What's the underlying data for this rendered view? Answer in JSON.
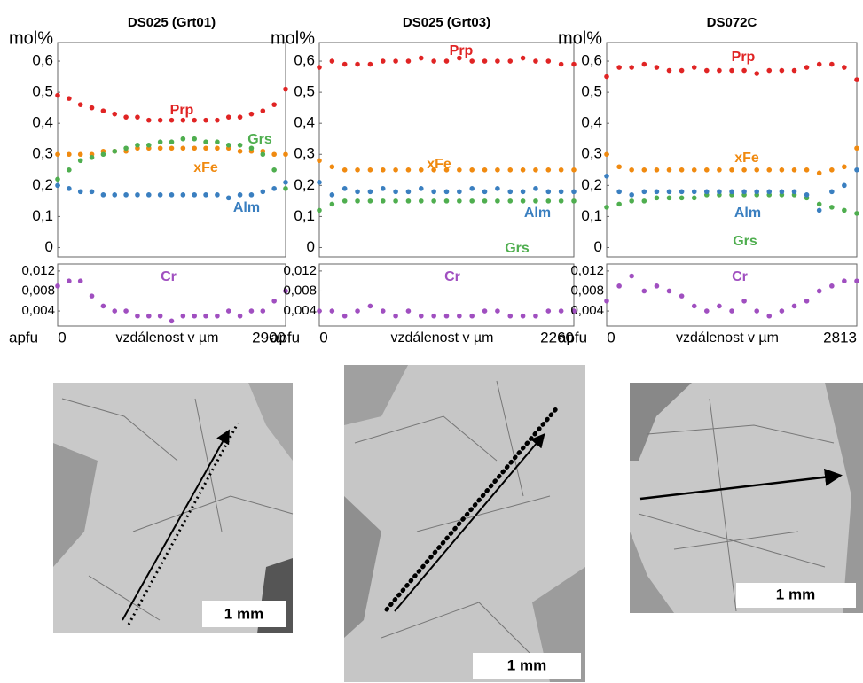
{
  "chart_data": [
    {
      "type": "scatter",
      "title": "DS025 (Grt01)",
      "ylabel": "mol%",
      "y2label": "apfu",
      "xlabel": "vzdálenost v µm",
      "x": [
        0,
        145,
        290,
        435,
        580,
        725,
        870,
        1015,
        1160,
        1305,
        1450,
        1595,
        1740,
        1885,
        2030,
        2175,
        2320,
        2465,
        2610,
        2755,
        2900
      ],
      "xlim": [
        0,
        2900
      ],
      "xticks": [
        0,
        2900
      ],
      "ylim": [
        -0.03,
        0.66
      ],
      "yticks": [
        0,
        {
          "value": 0.1,
          "label": "0,1"
        },
        {
          "value": 0.2,
          "label": "0,2"
        },
        {
          "value": 0.3,
          "label": "0,3"
        },
        {
          "value": 0.4,
          "label": "0,4"
        },
        {
          "value": 0.5,
          "label": "0,5"
        },
        {
          "value": 0.6,
          "label": "0,6"
        }
      ],
      "y2lim": [
        0.001,
        0.0134
      ],
      "y2ticks": [
        {
          "value": 0.004,
          "label": "0,004"
        },
        {
          "value": 0.008,
          "label": "0,008"
        },
        {
          "value": 0.012,
          "label": "0,012"
        }
      ],
      "series": [
        {
          "name": "Prp",
          "color": "#e02424",
          "values": [
            0.49,
            0.48,
            0.46,
            0.45,
            0.44,
            0.43,
            0.42,
            0.42,
            0.41,
            0.41,
            0.41,
            0.41,
            0.41,
            0.41,
            0.41,
            0.42,
            0.42,
            0.43,
            0.44,
            0.46,
            0.51
          ]
        },
        {
          "name": "xFe",
          "color": "#f08a10",
          "values": [
            0.3,
            0.3,
            0.3,
            0.3,
            0.31,
            0.31,
            0.31,
            0.32,
            0.32,
            0.32,
            0.32,
            0.32,
            0.32,
            0.32,
            0.32,
            0.32,
            0.31,
            0.31,
            0.31,
            0.3,
            0.3
          ]
        },
        {
          "name": "Grs",
          "color": "#4fae4f",
          "values": [
            0.22,
            0.25,
            0.28,
            0.29,
            0.3,
            0.31,
            0.32,
            0.33,
            0.33,
            0.34,
            0.34,
            0.35,
            0.35,
            0.34,
            0.34,
            0.33,
            0.33,
            0.32,
            0.3,
            0.25,
            0.19
          ]
        },
        {
          "name": "Alm",
          "color": "#3a7fc0",
          "values": [
            0.2,
            0.19,
            0.18,
            0.18,
            0.17,
            0.17,
            0.17,
            0.17,
            0.17,
            0.17,
            0.17,
            0.17,
            0.17,
            0.17,
            0.17,
            0.16,
            0.17,
            0.17,
            0.18,
            0.19,
            0.21
          ]
        },
        {
          "name": "Cr",
          "color": "#a04fc0",
          "axis": "y2",
          "values": [
            0.009,
            0.01,
            0.01,
            0.007,
            0.005,
            0.004,
            0.004,
            0.003,
            0.003,
            0.003,
            0.002,
            0.003,
            0.003,
            0.003,
            0.003,
            0.004,
            0.003,
            0.004,
            0.004,
            0.006,
            0.008
          ]
        }
      ]
    },
    {
      "type": "scatter",
      "title": "DS025 (Grt03)",
      "ylabel": "mol%",
      "y2label": "apfu",
      "xlabel": "vzdálenost v µm",
      "x": [
        0,
        113,
        226,
        339,
        452,
        565,
        678,
        791,
        904,
        1017,
        1130,
        1243,
        1356,
        1469,
        1582,
        1695,
        1808,
        1921,
        2034,
        2147,
        2260
      ],
      "xlim": [
        0,
        2260
      ],
      "xticks": [
        0,
        2260
      ],
      "ylim": [
        -0.03,
        0.66
      ],
      "yticks": [
        0,
        {
          "value": 0.1,
          "label": "0,1"
        },
        {
          "value": 0.2,
          "label": "0,2"
        },
        {
          "value": 0.3,
          "label": "0,3"
        },
        {
          "value": 0.4,
          "label": "0,4"
        },
        {
          "value": 0.5,
          "label": "0,5"
        },
        {
          "value": 0.6,
          "label": "0,6"
        }
      ],
      "y2lim": [
        0.001,
        0.0134
      ],
      "y2ticks": [
        {
          "value": 0.004,
          "label": "0,004"
        },
        {
          "value": 0.008,
          "label": "0,008"
        },
        {
          "value": 0.012,
          "label": "0,012"
        }
      ],
      "series": [
        {
          "name": "Prp",
          "color": "#e02424",
          "values": [
            0.58,
            0.6,
            0.59,
            0.59,
            0.59,
            0.6,
            0.6,
            0.6,
            0.61,
            0.6,
            0.6,
            0.61,
            0.6,
            0.6,
            0.6,
            0.6,
            0.61,
            0.6,
            0.6,
            0.59,
            0.59
          ]
        },
        {
          "name": "xFe",
          "color": "#f08a10",
          "values": [
            0.28,
            0.26,
            0.25,
            0.25,
            0.25,
            0.25,
            0.25,
            0.25,
            0.25,
            0.25,
            0.25,
            0.25,
            0.25,
            0.25,
            0.25,
            0.25,
            0.25,
            0.25,
            0.25,
            0.25,
            0.25
          ]
        },
        {
          "name": "Grs",
          "color": "#4fae4f",
          "values": [
            0.12,
            0.14,
            0.15,
            0.15,
            0.15,
            0.15,
            0.15,
            0.15,
            0.15,
            0.15,
            0.15,
            0.15,
            0.15,
            0.15,
            0.15,
            0.15,
            0.15,
            0.15,
            0.15,
            0.15,
            0.15
          ]
        },
        {
          "name": "Alm",
          "color": "#3a7fc0",
          "values": [
            0.21,
            0.17,
            0.19,
            0.18,
            0.18,
            0.19,
            0.18,
            0.18,
            0.19,
            0.18,
            0.18,
            0.18,
            0.19,
            0.18,
            0.19,
            0.18,
            0.18,
            0.19,
            0.18,
            0.18,
            0.18
          ]
        },
        {
          "name": "Cr",
          "color": "#a04fc0",
          "axis": "y2",
          "values": [
            0.004,
            0.004,
            0.003,
            0.004,
            0.005,
            0.004,
            0.003,
            0.004,
            0.003,
            0.003,
            0.003,
            0.003,
            0.003,
            0.004,
            0.004,
            0.003,
            0.003,
            0.003,
            0.004,
            0.004,
            0.004
          ]
        }
      ]
    },
    {
      "type": "scatter",
      "title": "DS072C",
      "ylabel": "mol%",
      "y2label": "apfu",
      "xlabel": "vzdálenost v µm",
      "x": [
        0,
        141,
        281,
        422,
        563,
        703,
        844,
        985,
        1125,
        1266,
        1407,
        1547,
        1688,
        1828,
        1969,
        2110,
        2250,
        2391,
        2532,
        2672,
        2813
      ],
      "xlim": [
        0,
        2813
      ],
      "xticks": [
        0,
        2813
      ],
      "ylim": [
        -0.03,
        0.66
      ],
      "yticks": [
        {
          "value": 0.1,
          "label": "0,1"
        },
        {
          "value": 0.2,
          "label": "0,2"
        },
        {
          "value": 0.3,
          "label": "0,3"
        },
        {
          "value": 0.4,
          "label": "0,4"
        },
        {
          "value": 0.5,
          "label": "0,5"
        },
        {
          "value": 0.6,
          "label": "0,6"
        },
        0
      ],
      "y2lim": [
        0.001,
        0.0134
      ],
      "y2ticks": [
        {
          "value": 0.004,
          "label": "0,004"
        },
        {
          "value": 0.008,
          "label": "0,008"
        },
        {
          "value": 0.012,
          "label": "0,012"
        }
      ],
      "series": [
        {
          "name": "Prp",
          "color": "#e02424",
          "values": [
            0.55,
            0.58,
            0.58,
            0.59,
            0.58,
            0.57,
            0.57,
            0.58,
            0.57,
            0.57,
            0.57,
            0.57,
            0.56,
            0.57,
            0.57,
            0.57,
            0.58,
            0.59,
            0.59,
            0.58,
            0.54
          ]
        },
        {
          "name": "xFe",
          "color": "#f08a10",
          "values": [
            0.3,
            0.26,
            0.25,
            0.25,
            0.25,
            0.25,
            0.25,
            0.25,
            0.25,
            0.25,
            0.25,
            0.25,
            0.25,
            0.25,
            0.25,
            0.25,
            0.25,
            0.24,
            0.25,
            0.26,
            0.32
          ]
        },
        {
          "name": "Grs",
          "color": "#4fae4f",
          "values": [
            0.13,
            0.14,
            0.15,
            0.15,
            0.16,
            0.16,
            0.16,
            0.16,
            0.17,
            0.17,
            0.17,
            0.17,
            0.17,
            0.17,
            0.17,
            0.17,
            0.16,
            0.14,
            0.13,
            0.12,
            0.11
          ]
        },
        {
          "name": "Alm",
          "color": "#3a7fc0",
          "values": [
            0.23,
            0.18,
            0.17,
            0.18,
            0.18,
            0.18,
            0.18,
            0.18,
            0.18,
            0.18,
            0.18,
            0.18,
            0.18,
            0.18,
            0.18,
            0.18,
            0.17,
            0.12,
            0.18,
            0.2,
            0.25
          ]
        },
        {
          "name": "Cr",
          "color": "#a04fc0",
          "axis": "y2",
          "values": [
            0.006,
            0.009,
            0.011,
            0.008,
            0.009,
            0.008,
            0.007,
            0.005,
            0.004,
            0.005,
            0.004,
            0.006,
            0.004,
            0.003,
            0.004,
            0.005,
            0.006,
            0.008,
            0.009,
            0.01,
            0.01
          ]
        }
      ]
    }
  ],
  "images": [
    {
      "scale": "1 mm"
    },
    {
      "scale": "1 mm"
    },
    {
      "scale": "1 mm"
    }
  ]
}
